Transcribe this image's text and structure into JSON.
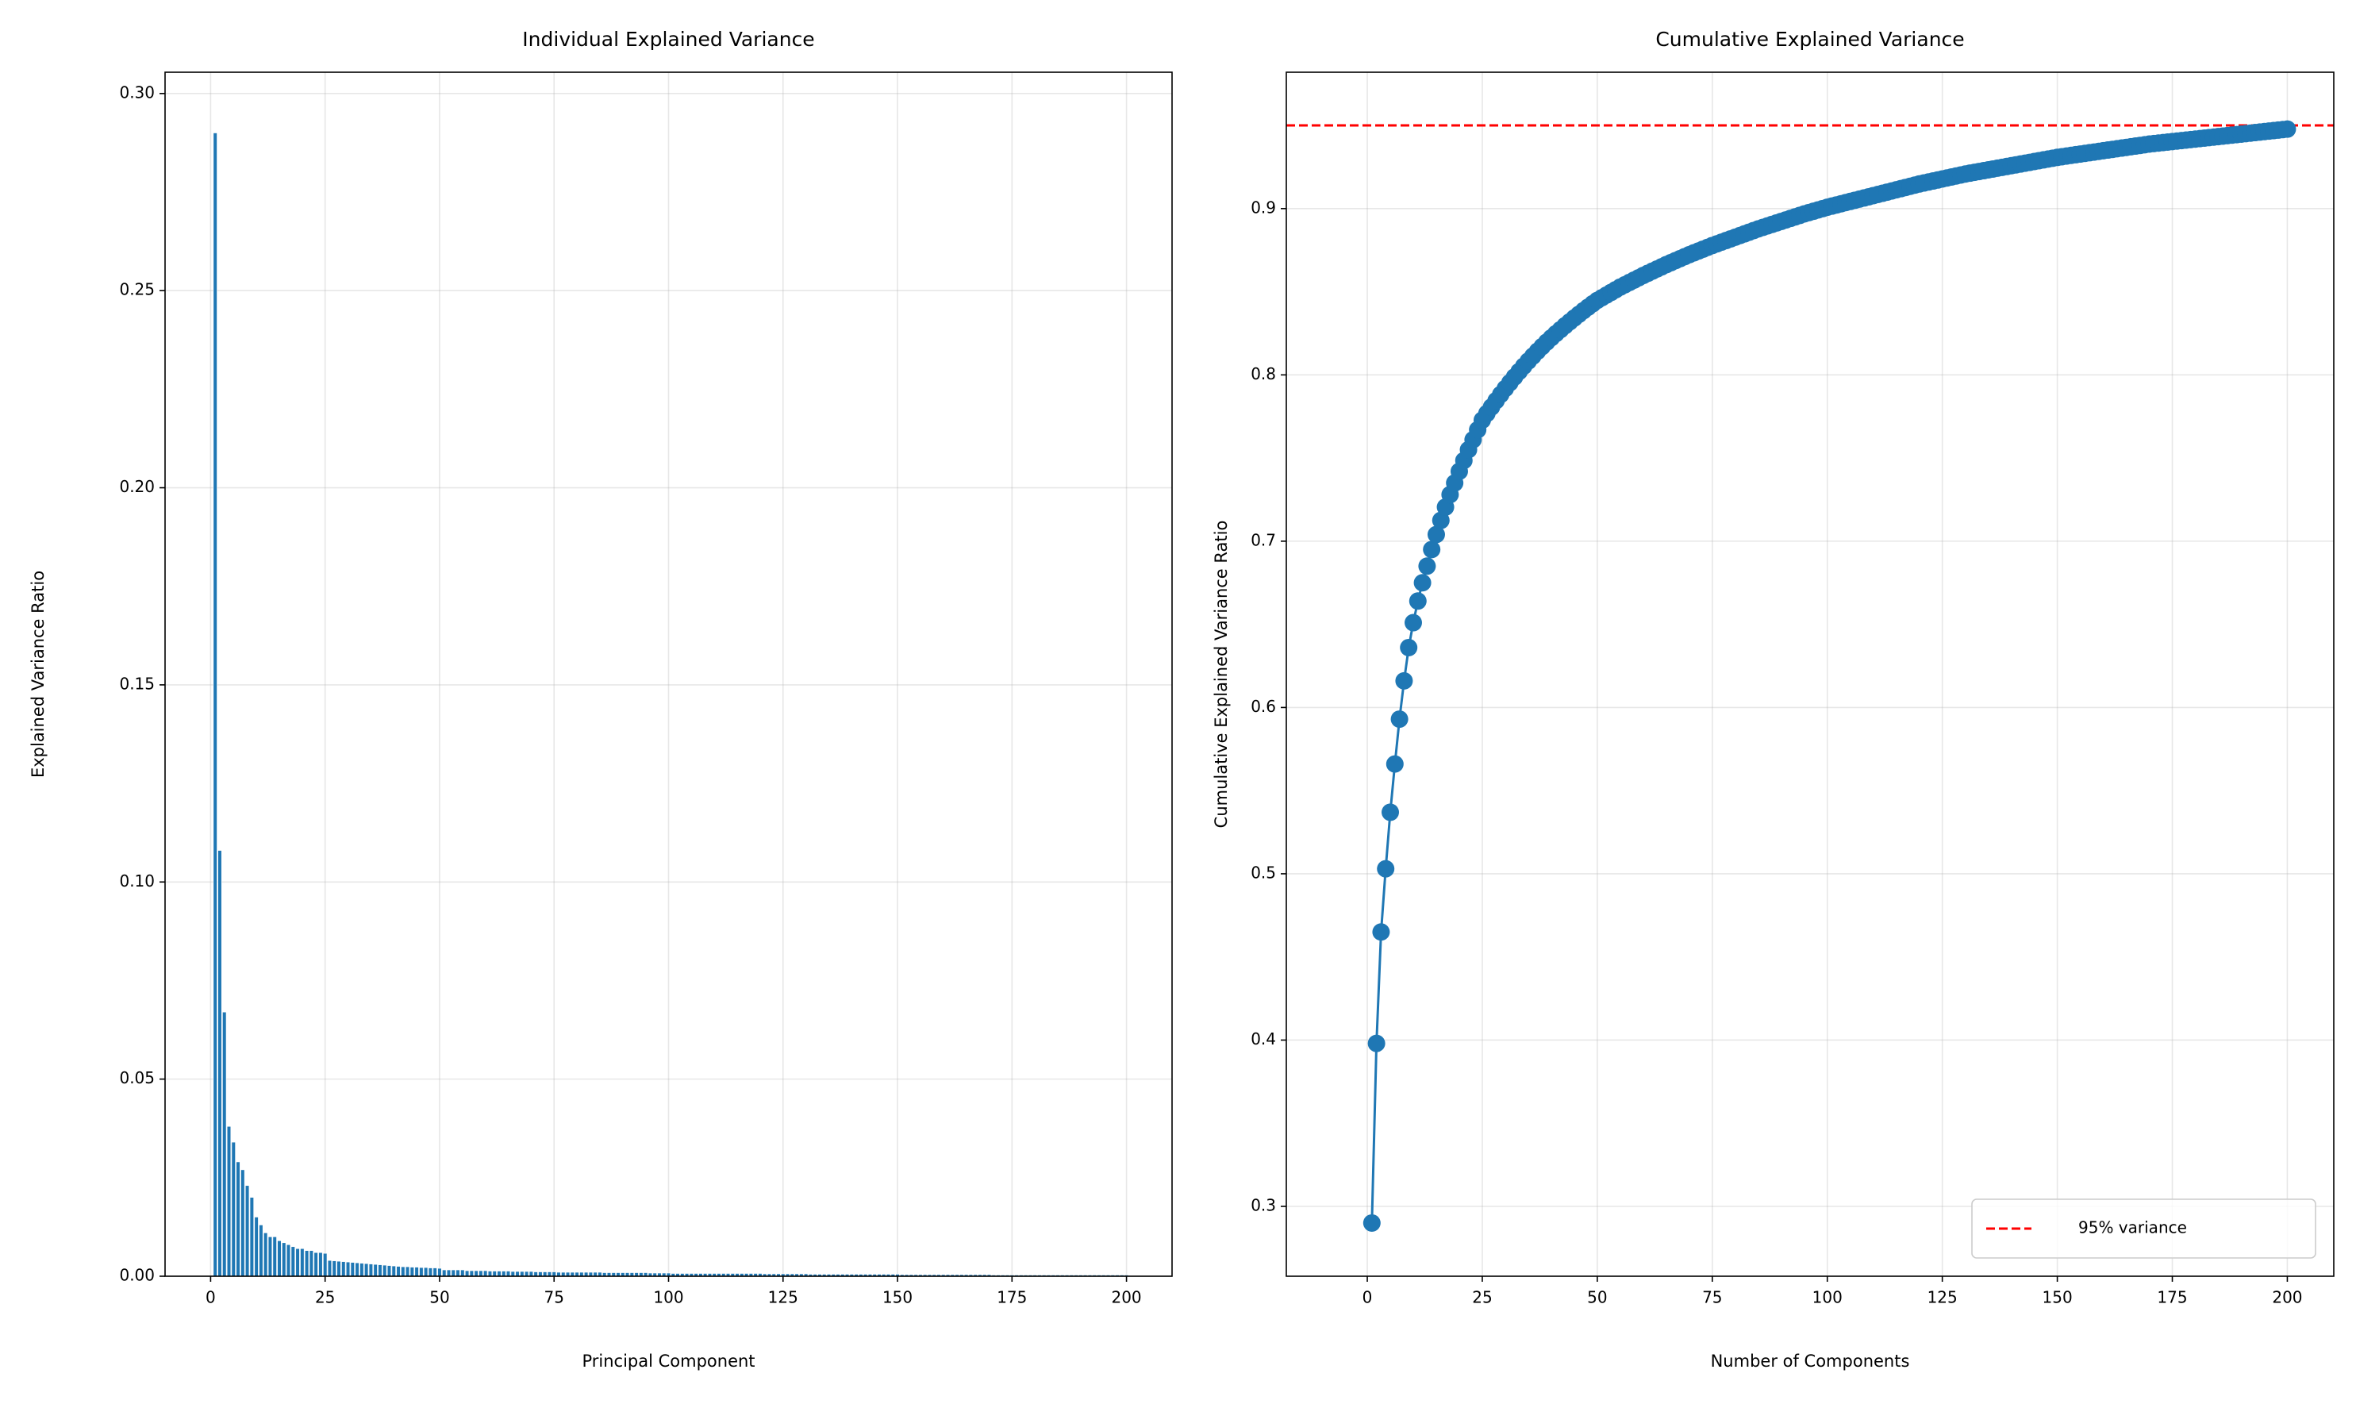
{
  "chart_data": [
    {
      "type": "bar",
      "title": "Individual Explained Variance",
      "x_label": "Principal Component",
      "y_label": "Explained Variance Ratio",
      "color": "#1f77b4",
      "grid": true,
      "bar_width": 0.8,
      "x": [
        1,
        2,
        3,
        4,
        5,
        6,
        7,
        8,
        9,
        10,
        11,
        12,
        13,
        14,
        15,
        16,
        17,
        18,
        19,
        20,
        21,
        22,
        23,
        24,
        25,
        26,
        27,
        28,
        29,
        30,
        31,
        32,
        33,
        34,
        35,
        36,
        37,
        38,
        39,
        40,
        41,
        42,
        43,
        44,
        45,
        46,
        47,
        48,
        49,
        50,
        51,
        52,
        53,
        54,
        55,
        56,
        57,
        58,
        59,
        60,
        61,
        62,
        63,
        64,
        65,
        66,
        67,
        68,
        69,
        70,
        71,
        72,
        73,
        74,
        75,
        76,
        77,
        78,
        79,
        80,
        81,
        82,
        83,
        84,
        85,
        86,
        87,
        88,
        89,
        90,
        91,
        92,
        93,
        94,
        95,
        96,
        97,
        98,
        99,
        100,
        101,
        102,
        103,
        104,
        105,
        106,
        107,
        108,
        109,
        110,
        111,
        112,
        113,
        114,
        115,
        116,
        117,
        118,
        119,
        120,
        121,
        122,
        123,
        124,
        125,
        126,
        127,
        128,
        129,
        130,
        131,
        132,
        133,
        134,
        135,
        136,
        137,
        138,
        139,
        140,
        141,
        142,
        143,
        144,
        145,
        146,
        147,
        148,
        149,
        150,
        151,
        152,
        153,
        154,
        155,
        156,
        157,
        158,
        159,
        160,
        161,
        162,
        163,
        164,
        165,
        166,
        167,
        168,
        169,
        170,
        171,
        172,
        173,
        174,
        175,
        176,
        177,
        178,
        179,
        180,
        181,
        182,
        183,
        184,
        185,
        186,
        187,
        188,
        189,
        190,
        191,
        192,
        193,
        194,
        195,
        196,
        197,
        198,
        199,
        200
      ],
      "values": [
        0.29,
        0.108,
        0.067,
        0.038,
        0.034,
        0.029,
        0.027,
        0.023,
        0.02,
        0.015,
        0.013,
        0.011,
        0.01,
        0.01,
        0.009,
        0.0085,
        0.008,
        0.0075,
        0.007,
        0.007,
        0.0065,
        0.0065,
        0.006,
        0.006,
        0.0058,
        0.004,
        0.0039,
        0.0038,
        0.0037,
        0.0036,
        0.0035,
        0.0034,
        0.0033,
        0.0032,
        0.0031,
        0.003,
        0.0029,
        0.0028,
        0.0027,
        0.0026,
        0.0025,
        0.0024,
        0.0024,
        0.0023,
        0.0023,
        0.0022,
        0.0022,
        0.0021,
        0.0021,
        0.002,
        0.0016,
        0.0016,
        0.0016,
        0.0016,
        0.0016,
        0.0014,
        0.0014,
        0.0014,
        0.0014,
        0.0014,
        0.0013,
        0.0013,
        0.0013,
        0.0013,
        0.0013,
        0.0012,
        0.0012,
        0.0012,
        0.0012,
        0.0012,
        0.0011,
        0.0011,
        0.0011,
        0.0011,
        0.0011,
        0.001,
        0.001,
        0.001,
        0.001,
        0.001,
        0.001,
        0.001,
        0.001,
        0.001,
        0.001,
        0.0009,
        0.0009,
        0.0009,
        0.0009,
        0.0009,
        0.0009,
        0.0009,
        0.0009,
        0.0009,
        0.0009,
        0.0008,
        0.0008,
        0.0008,
        0.0008,
        0.0008,
        0.0007,
        0.0007,
        0.0007,
        0.0007,
        0.0007,
        0.0007,
        0.0007,
        0.0007,
        0.0007,
        0.0007,
        0.0007,
        0.0007,
        0.0007,
        0.0007,
        0.0007,
        0.0007,
        0.0007,
        0.0007,
        0.0007,
        0.0007,
        0.0006,
        0.0006,
        0.0006,
        0.0006,
        0.0006,
        0.0006,
        0.0006,
        0.0006,
        0.0006,
        0.0006,
        0.0005,
        0.0005,
        0.0005,
        0.0005,
        0.0005,
        0.0005,
        0.0005,
        0.0005,
        0.0005,
        0.0005,
        0.0005,
        0.0005,
        0.0005,
        0.0005,
        0.0005,
        0.0005,
        0.0005,
        0.0005,
        0.0005,
        0.0005,
        0.0004,
        0.0004,
        0.0004,
        0.0004,
        0.0004,
        0.0004,
        0.0004,
        0.0004,
        0.0004,
        0.0004,
        0.0004,
        0.0004,
        0.0004,
        0.0004,
        0.0004,
        0.0004,
        0.0004,
        0.0004,
        0.0004,
        0.0004,
        0.0003,
        0.0003,
        0.0003,
        0.0003,
        0.0003,
        0.0003,
        0.0003,
        0.0003,
        0.0003,
        0.0003,
        0.0003,
        0.0003,
        0.0003,
        0.0003,
        0.0003,
        0.0003,
        0.0003,
        0.0003,
        0.0003,
        0.0003,
        0.0003,
        0.0003,
        0.0003,
        0.0003,
        0.0003,
        0.0003,
        0.0003,
        0.0003,
        0.0003,
        0.0003
      ],
      "xlim": [
        -9.95,
        209.95
      ],
      "xticks": [
        0,
        25,
        50,
        75,
        100,
        125,
        150,
        175,
        200
      ],
      "ylim": [
        0,
        0.3054
      ],
      "yticks": [
        {
          "value": 0,
          "label": "0.00"
        },
        {
          "value": 0.05,
          "label": "0.05"
        },
        {
          "value": 0.1,
          "label": "0.10"
        },
        {
          "value": 0.15,
          "label": "0.15"
        },
        {
          "value": 0.2,
          "label": "0.20"
        },
        {
          "value": 0.25,
          "label": "0.25"
        },
        {
          "value": 0.3,
          "label": "0.30"
        }
      ]
    },
    {
      "type": "line",
      "title": "Cumulative Explained Variance",
      "x_label": "Number of Components",
      "y_label": "Cumulative Explained Variance Ratio",
      "color": "#1f77b4",
      "grid": true,
      "marker": "o",
      "x": [
        1,
        2,
        3,
        4,
        5,
        6,
        7,
        8,
        9,
        10,
        11,
        12,
        13,
        14,
        15,
        16,
        17,
        18,
        19,
        20,
        21,
        22,
        23,
        24,
        25,
        26,
        27,
        28,
        29,
        30,
        31,
        32,
        33,
        34,
        35,
        36,
        37,
        38,
        39,
        40,
        41,
        42,
        43,
        44,
        45,
        46,
        47,
        48,
        49,
        50,
        51,
        52,
        53,
        54,
        55,
        56,
        57,
        58,
        59,
        60,
        61,
        62,
        63,
        64,
        65,
        66,
        67,
        68,
        69,
        70,
        71,
        72,
        73,
        74,
        75,
        76,
        77,
        78,
        79,
        80,
        81,
        82,
        83,
        84,
        85,
        86,
        87,
        88,
        89,
        90,
        91,
        92,
        93,
        94,
        95,
        96,
        97,
        98,
        99,
        100,
        101,
        102,
        103,
        104,
        105,
        106,
        107,
        108,
        109,
        110,
        111,
        112,
        113,
        114,
        115,
        116,
        117,
        118,
        119,
        120,
        121,
        122,
        123,
        124,
        125,
        126,
        127,
        128,
        129,
        130,
        131,
        132,
        133,
        134,
        135,
        136,
        137,
        138,
        139,
        140,
        141,
        142,
        143,
        144,
        145,
        146,
        147,
        148,
        149,
        150,
        151,
        152,
        153,
        154,
        155,
        156,
        157,
        158,
        159,
        160,
        161,
        162,
        163,
        164,
        165,
        166,
        167,
        168,
        169,
        170,
        171,
        172,
        173,
        174,
        175,
        176,
        177,
        178,
        179,
        180,
        181,
        182,
        183,
        184,
        185,
        186,
        187,
        188,
        189,
        190,
        191,
        192,
        193,
        194,
        195,
        196,
        197,
        198,
        199,
        200
      ],
      "values": [
        0.29,
        0.398,
        0.465,
        0.503,
        0.537,
        0.566,
        0.593,
        0.616,
        0.636,
        0.651,
        0.664,
        0.675,
        0.685,
        0.695,
        0.704,
        0.7125,
        0.7205,
        0.728,
        0.735,
        0.742,
        0.7485,
        0.755,
        0.761,
        0.767,
        0.7728,
        0.7768,
        0.7807,
        0.7845,
        0.7882,
        0.7918,
        0.7953,
        0.7987,
        0.802,
        0.8052,
        0.8083,
        0.8113,
        0.8142,
        0.817,
        0.8197,
        0.8223,
        0.8248,
        0.8272,
        0.8296,
        0.8319,
        0.8342,
        0.8364,
        0.8386,
        0.8407,
        0.8428,
        0.8448,
        0.8464,
        0.848,
        0.8496,
        0.8512,
        0.8528,
        0.8542,
        0.8556,
        0.857,
        0.8584,
        0.8598,
        0.8611,
        0.8624,
        0.8637,
        0.865,
        0.8663,
        0.8675,
        0.8687,
        0.8699,
        0.8711,
        0.8723,
        0.8734,
        0.8745,
        0.8756,
        0.8767,
        0.8778,
        0.8788,
        0.8798,
        0.8808,
        0.8818,
        0.8828,
        0.8838,
        0.8848,
        0.8858,
        0.8868,
        0.8878,
        0.8887,
        0.8896,
        0.8905,
        0.8914,
        0.8923,
        0.8932,
        0.8941,
        0.895,
        0.8959,
        0.8968,
        0.8976,
        0.8984,
        0.8992,
        0.9,
        0.9008,
        0.9015,
        0.9022,
        0.9029,
        0.9036,
        0.9043,
        0.905,
        0.9057,
        0.9064,
        0.9071,
        0.9078,
        0.9085,
        0.9092,
        0.9099,
        0.9106,
        0.9113,
        0.912,
        0.9127,
        0.9134,
        0.9141,
        0.9148,
        0.9154,
        0.916,
        0.9166,
        0.9172,
        0.9178,
        0.9184,
        0.919,
        0.9196,
        0.9202,
        0.9208,
        0.9213,
        0.9218,
        0.9223,
        0.9228,
        0.9233,
        0.9238,
        0.9243,
        0.9248,
        0.9253,
        0.9258,
        0.9263,
        0.9268,
        0.9273,
        0.9278,
        0.9283,
        0.9288,
        0.9293,
        0.9298,
        0.9303,
        0.9308,
        0.9312,
        0.9316,
        0.932,
        0.9324,
        0.9328,
        0.9332,
        0.9336,
        0.934,
        0.9344,
        0.9348,
        0.9352,
        0.9356,
        0.936,
        0.9364,
        0.9368,
        0.9372,
        0.9376,
        0.938,
        0.9384,
        0.9388,
        0.9391,
        0.9394,
        0.9397,
        0.94,
        0.9403,
        0.9406,
        0.9409,
        0.9412,
        0.9415,
        0.9418,
        0.9421,
        0.9424,
        0.9427,
        0.943,
        0.9433,
        0.9436,
        0.9439,
        0.9442,
        0.9445,
        0.9448,
        0.9451,
        0.9454,
        0.9457,
        0.946,
        0.9463,
        0.9466,
        0.9469,
        0.9472,
        0.9475,
        0.9478
      ],
      "xlim": [
        -17.6,
        210.1
      ],
      "xticks": [
        0,
        25,
        50,
        75,
        100,
        125,
        150,
        175,
        200
      ],
      "ylim": [
        0.258,
        0.982
      ],
      "yticks": [
        0.3,
        0.4,
        0.5,
        0.6,
        0.7,
        0.8,
        0.9
      ],
      "reference_line": {
        "value": 0.95,
        "label": "95% variance",
        "color": "#ff0000"
      },
      "legend": "lower right"
    }
  ]
}
